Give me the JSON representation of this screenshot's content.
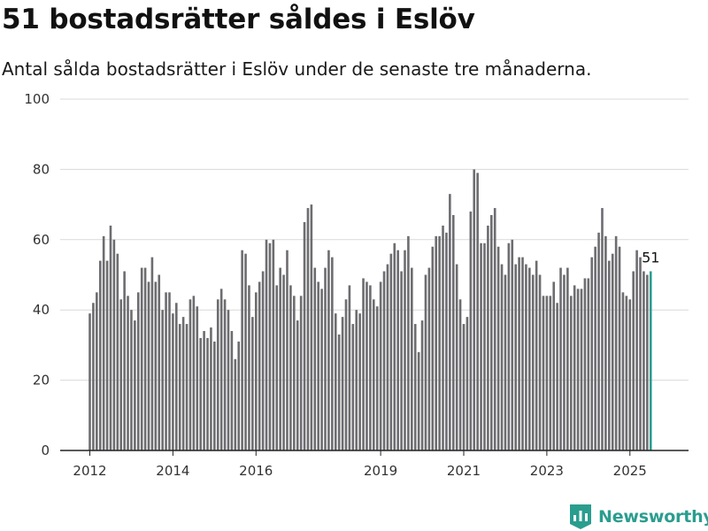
{
  "title": "51 bostadsrätter såldes i Eslöv",
  "subtitle": "Antal sålda bostadsrätter i Eslöv under de senaste tre månaderna.",
  "brand": {
    "name": "Newsworthy",
    "icon": "bar-chart-logo-icon",
    "color": "#2a9d8f"
  },
  "chart_data": {
    "type": "bar",
    "title": "51 bostadsrätter såldes i Eslöv",
    "subtitle": "Antal sålda bostadsrätter i Eslöv under de senaste tre månaderna.",
    "xlabel": "",
    "ylabel": "",
    "ylim": [
      0,
      100
    ],
    "yticks": [
      0,
      20,
      40,
      60,
      80,
      100
    ],
    "grid": true,
    "bar_color": "#6d6c70",
    "highlight_color": "#2a9d8f",
    "x_start": "2012-01",
    "x_ticks": [
      {
        "label": "2012",
        "index": 0
      },
      {
        "label": "2014",
        "index": 24
      },
      {
        "label": "2016",
        "index": 48
      },
      {
        "label": "2019",
        "index": 84
      },
      {
        "label": "2021",
        "index": 108
      },
      {
        "label": "2023",
        "index": 132
      },
      {
        "label": "2025",
        "index": 156
      }
    ],
    "values": [
      39,
      42,
      45,
      54,
      61,
      54,
      64,
      60,
      56,
      43,
      51,
      44,
      40,
      37,
      45,
      52,
      52,
      48,
      55,
      48,
      50,
      40,
      45,
      45,
      39,
      42,
      36,
      38,
      36,
      43,
      44,
      41,
      32,
      34,
      32,
      35,
      31,
      43,
      46,
      43,
      40,
      34,
      26,
      31,
      57,
      56,
      47,
      38,
      45,
      48,
      51,
      60,
      59,
      60,
      47,
      52,
      50,
      57,
      47,
      44,
      37,
      44,
      65,
      69,
      70,
      52,
      48,
      46,
      52,
      57,
      55,
      39,
      33,
      38,
      43,
      47,
      36,
      40,
      39,
      49,
      48,
      47,
      43,
      41,
      48,
      51,
      53,
      56,
      59,
      57,
      51,
      57,
      61,
      52,
      36,
      28,
      37,
      50,
      52,
      58,
      61,
      61,
      64,
      62,
      73,
      67,
      53,
      43,
      36,
      38,
      68,
      80,
      79,
      59,
      59,
      64,
      67,
      69,
      58,
      53,
      50,
      59,
      60,
      53,
      55,
      55,
      53,
      52,
      50,
      54,
      50,
      44,
      44,
      44,
      48,
      42,
      52,
      50,
      52,
      44,
      47,
      46,
      46,
      49,
      49,
      55,
      58,
      62,
      69,
      61,
      54,
      56,
      61,
      58,
      45,
      44,
      43,
      51,
      57,
      55,
      51,
      50,
      51
    ],
    "last_value_label": "51"
  }
}
